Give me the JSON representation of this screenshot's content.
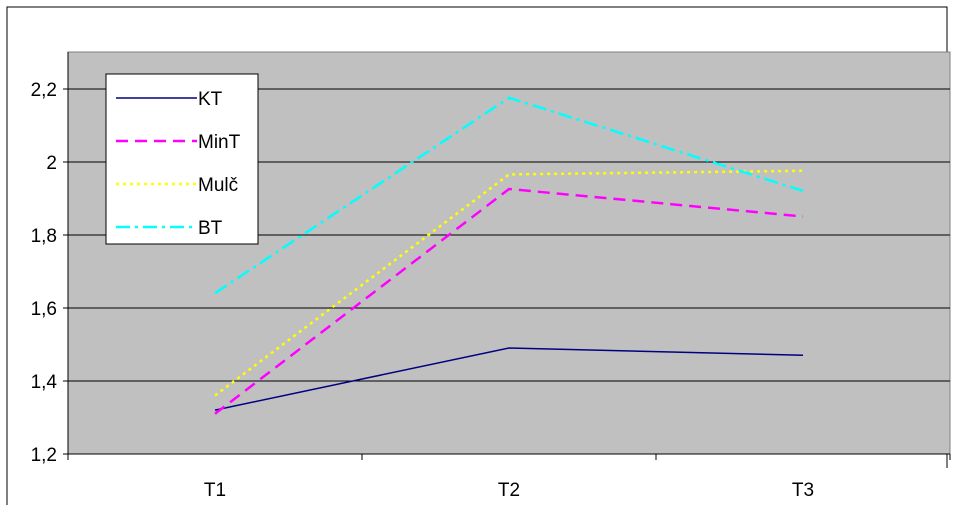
{
  "chart_data": {
    "type": "line",
    "categories": [
      "T1",
      "T2",
      "T3"
    ],
    "ylim": [
      1.2,
      2.3
    ],
    "yticks": [
      1.2,
      1.4,
      1.6,
      1.8,
      2.0,
      2.2
    ],
    "ytick_labels": [
      "1,2",
      "1,4",
      "1,6",
      "1,8",
      "2",
      "2,2"
    ],
    "grid": true,
    "plot_background": "#c0c0c0",
    "legend_position": "top-left",
    "series": [
      {
        "name": "KT",
        "values": [
          1.32,
          1.49,
          1.47
        ],
        "color": "#000080",
        "dash": "solid"
      },
      {
        "name": "MinT",
        "values": [
          1.31,
          1.925,
          1.85
        ],
        "color": "#ff00ff",
        "dash": "dash"
      },
      {
        "name": "Mulč",
        "values": [
          1.36,
          1.965,
          1.975
        ],
        "color": "#ffff00",
        "dash": "dot"
      },
      {
        "name": "BT",
        "values": [
          1.64,
          2.175,
          1.92
        ],
        "color": "#00ffff",
        "dash": "dashdot"
      }
    ]
  }
}
